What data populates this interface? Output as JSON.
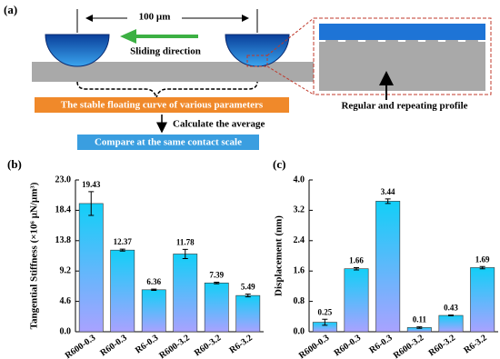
{
  "diagram": {
    "panel_label": "(a)",
    "scale": "100 µm",
    "sliding": "Sliding direction",
    "curve": "The stable floating curve of various parameters",
    "profile": "Regular and repeating profile",
    "average": "Calculate the average",
    "compare": "Compare at the same contact scale"
  },
  "chart_data": [
    {
      "type": "bar",
      "panel_label": "(b)",
      "ylabel": "Tangential Stiffness (×10⁶ µN/µm³)",
      "categories": [
        "R600-0.3",
        "R60-0.3",
        "R6-0.3",
        "R600-3.2",
        "R60-3.2",
        "R6-3.2"
      ],
      "values": [
        19.43,
        12.37,
        6.36,
        11.78,
        7.39,
        5.49
      ],
      "errors": [
        1.8,
        0.15,
        0.1,
        0.7,
        0.12,
        0.2
      ],
      "gradient": [
        "#12cff7",
        "#a9a2ff"
      ],
      "ylim": [
        0,
        23
      ],
      "yticks": [
        {
          "value": 0,
          "label": "0.0"
        },
        4.6,
        9.2,
        13.8,
        18.4,
        {
          "value": 23,
          "label": "23.0"
        }
      ]
    },
    {
      "type": "bar",
      "panel_label": "(c)",
      "ylabel": "Displacement (nm)",
      "categories": [
        "R600-0.3",
        "R60-0.3",
        "R6-0.3",
        "R600-3.2",
        "R60-3.2",
        "R6-3.2"
      ],
      "values": [
        0.25,
        1.66,
        3.44,
        0.11,
        0.43,
        1.69
      ],
      "errors": [
        0.08,
        0.03,
        0.06,
        0.02,
        0.01,
        0.03
      ],
      "gradient": [
        "#12cff7",
        "#a9a2ff"
      ],
      "ylim": [
        0,
        4
      ],
      "yticks": [
        {
          "value": 0,
          "label": "0.0"
        },
        {
          "value": 0.8,
          "label": "0.8"
        },
        {
          "value": 1.6,
          "label": "1.6"
        },
        {
          "value": 2.4,
          "label": "2.4"
        },
        {
          "value": 3.2,
          "label": "3.2"
        },
        {
          "value": 4,
          "label": "4.0"
        }
      ]
    }
  ]
}
